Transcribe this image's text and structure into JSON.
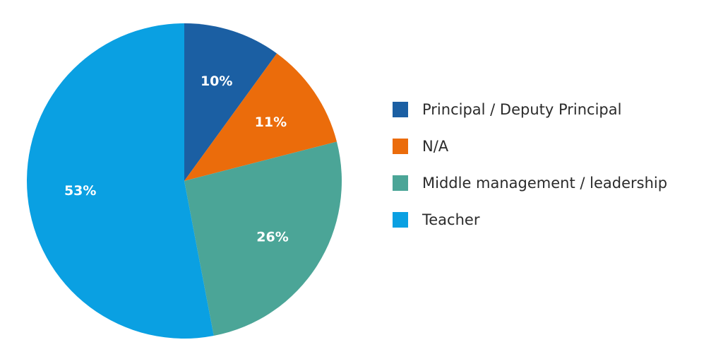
{
  "chart_data": {
    "type": "pie",
    "slices": [
      {
        "label": "Principal / Deputy Principal",
        "value": 10,
        "value_label": "10%",
        "color": "#1b5fa3"
      },
      {
        "label": "N/A",
        "value": 11,
        "value_label": "11%",
        "color": "#eb6c0b"
      },
      {
        "label": "Middle management / leadership",
        "value": 26,
        "value_label": "26%",
        "color": "#4ba597"
      },
      {
        "label": "Teacher",
        "value": 53,
        "value_label": "53%",
        "color": "#0aa0e2"
      }
    ],
    "start_angle_deg": 0,
    "direction": "clockwise",
    "legend_position": "right"
  }
}
